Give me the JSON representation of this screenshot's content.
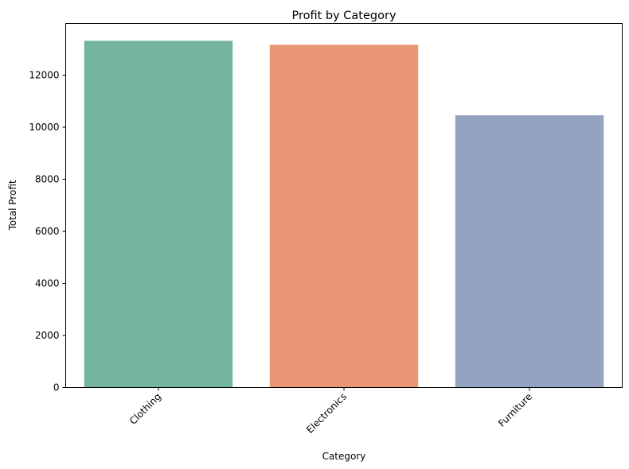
{
  "chart_data": {
    "type": "bar",
    "title": "Profit by Category",
    "xlabel": "Category",
    "ylabel": "Total Profit",
    "categories": [
      "Clothing",
      "Electronics",
      "Furniture"
    ],
    "values": [
      13320,
      13170,
      10460
    ],
    "colors": [
      "#74b49f",
      "#e99674",
      "#95a3c3"
    ],
    "ylim": [
      0,
      13986
    ],
    "yticks": [
      0,
      2000,
      4000,
      6000,
      8000,
      10000,
      12000
    ],
    "xtick_rotation": 45,
    "grid": false,
    "legend": "none"
  }
}
